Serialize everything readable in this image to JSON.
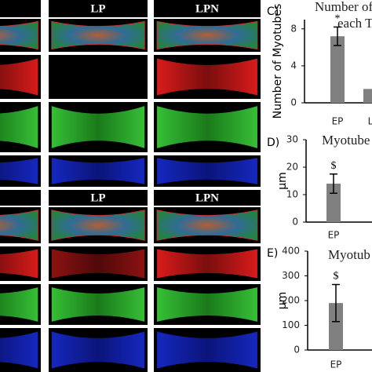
{
  "image_grid": {
    "blocks": [
      {
        "headers": [
          "LP",
          "LPN"
        ]
      },
      {
        "headers": [
          "LP",
          "LPN"
        ]
      }
    ]
  },
  "chart_data": [
    {
      "type": "bar",
      "panel_label": "C)",
      "title_lines": [
        "Number of M",
        "each T"
      ],
      "y_label": "Number of Myotubes",
      "categories": [
        "EP",
        "L"
      ],
      "values": [
        7.2,
        1.5
      ],
      "errors": [
        1.0,
        null
      ],
      "annotations": [
        "*",
        null
      ],
      "color": "#808080",
      "ylim": [
        0,
        9
      ],
      "yticks": [
        0,
        4,
        8
      ]
    },
    {
      "type": "bar",
      "panel_label": "D)",
      "title_lines": [
        "Myotube"
      ],
      "y_label": "μm",
      "categories": [
        "EP"
      ],
      "values": [
        14
      ],
      "errors": [
        3.5
      ],
      "annotations": [
        "$"
      ],
      "color": "#808080",
      "ylim": [
        0,
        30
      ],
      "yticks": [
        0,
        10,
        20,
        30
      ]
    },
    {
      "type": "bar",
      "panel_label": "E)",
      "title_lines": [
        "Myotub"
      ],
      "y_label": "μm",
      "categories": [
        "EP"
      ],
      "values": [
        190
      ],
      "errors": [
        75
      ],
      "annotations": [
        "$"
      ],
      "color": "#808080",
      "ylim": [
        0,
        400
      ],
      "yticks": [
        0,
        100,
        200,
        300,
        400
      ]
    }
  ]
}
